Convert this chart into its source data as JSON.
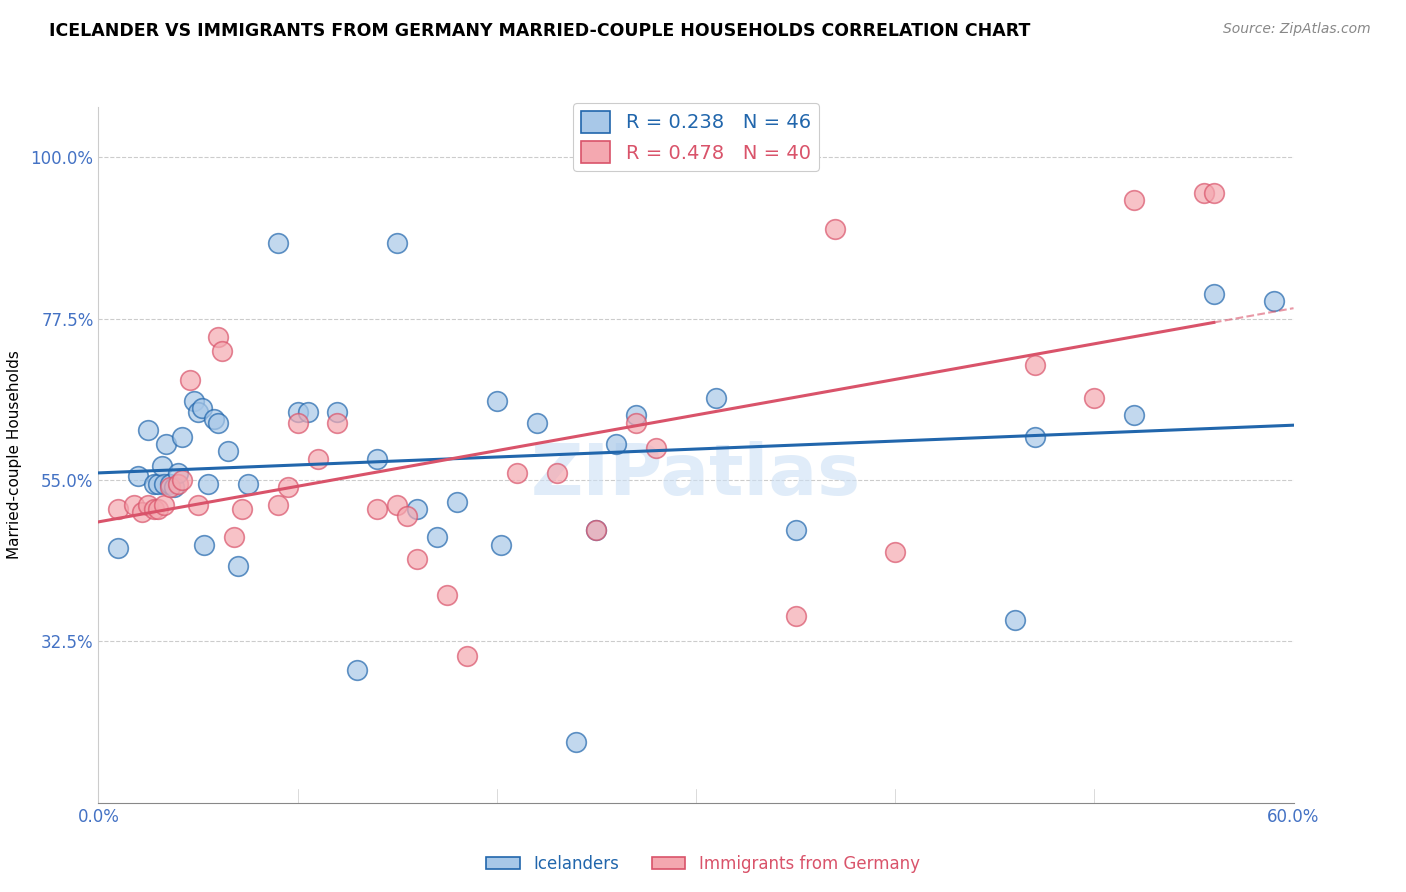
{
  "title": "ICELANDER VS IMMIGRANTS FROM GERMANY MARRIED-COUPLE HOUSEHOLDS CORRELATION CHART",
  "source": "Source: ZipAtlas.com",
  "ylabel": "Married-couple Households",
  "yticks": [
    0.325,
    0.55,
    0.775,
    1.0
  ],
  "ytick_labels": [
    "32.5%",
    "55.0%",
    "77.5%",
    "100.0%"
  ],
  "xmin": 0.0,
  "xmax": 0.6,
  "ymin": 0.1,
  "ymax": 1.07,
  "watermark": "ZIPatlas",
  "blue_R": 0.238,
  "blue_N": 46,
  "pink_R": 0.478,
  "pink_N": 40,
  "blue_color": "#a8c8e8",
  "pink_color": "#f4a8b0",
  "blue_line_color": "#2166ac",
  "pink_line_color": "#d9536a",
  "axis_color": "#4472c4",
  "grid_color": "#cccccc",
  "blue_x": [
    0.01,
    0.02,
    0.025,
    0.028,
    0.03,
    0.032,
    0.033,
    0.034,
    0.036,
    0.038,
    0.04,
    0.042,
    0.048,
    0.05,
    0.052,
    0.053,
    0.055,
    0.058,
    0.06,
    0.065,
    0.07,
    0.075,
    0.09,
    0.1,
    0.105,
    0.12,
    0.13,
    0.14,
    0.15,
    0.16,
    0.17,
    0.18,
    0.2,
    0.202,
    0.22,
    0.24,
    0.25,
    0.26,
    0.27,
    0.31,
    0.35,
    0.46,
    0.47,
    0.52,
    0.56,
    0.59
  ],
  "blue_y": [
    0.455,
    0.555,
    0.62,
    0.545,
    0.545,
    0.57,
    0.545,
    0.6,
    0.545,
    0.54,
    0.56,
    0.61,
    0.66,
    0.645,
    0.65,
    0.46,
    0.545,
    0.635,
    0.63,
    0.59,
    0.43,
    0.545,
    0.88,
    0.645,
    0.645,
    0.645,
    0.285,
    0.58,
    0.88,
    0.51,
    0.47,
    0.52,
    0.66,
    0.46,
    0.63,
    0.185,
    0.48,
    0.6,
    0.64,
    0.665,
    0.48,
    0.355,
    0.61,
    0.64,
    0.81,
    0.8
  ],
  "pink_x": [
    0.01,
    0.018,
    0.022,
    0.025,
    0.028,
    0.03,
    0.033,
    0.036,
    0.04,
    0.042,
    0.046,
    0.05,
    0.06,
    0.062,
    0.068,
    0.072,
    0.09,
    0.095,
    0.1,
    0.11,
    0.12,
    0.14,
    0.15,
    0.155,
    0.16,
    0.175,
    0.185,
    0.21,
    0.23,
    0.25,
    0.27,
    0.28,
    0.35,
    0.37,
    0.4,
    0.47,
    0.5,
    0.52,
    0.555,
    0.56
  ],
  "pink_y": [
    0.51,
    0.515,
    0.505,
    0.515,
    0.51,
    0.51,
    0.515,
    0.54,
    0.545,
    0.55,
    0.69,
    0.515,
    0.75,
    0.73,
    0.47,
    0.51,
    0.515,
    0.54,
    0.63,
    0.58,
    0.63,
    0.51,
    0.515,
    0.5,
    0.44,
    0.39,
    0.305,
    0.56,
    0.56,
    0.48,
    0.63,
    0.595,
    0.36,
    0.9,
    0.45,
    0.71,
    0.665,
    0.94,
    0.95,
    0.95
  ]
}
